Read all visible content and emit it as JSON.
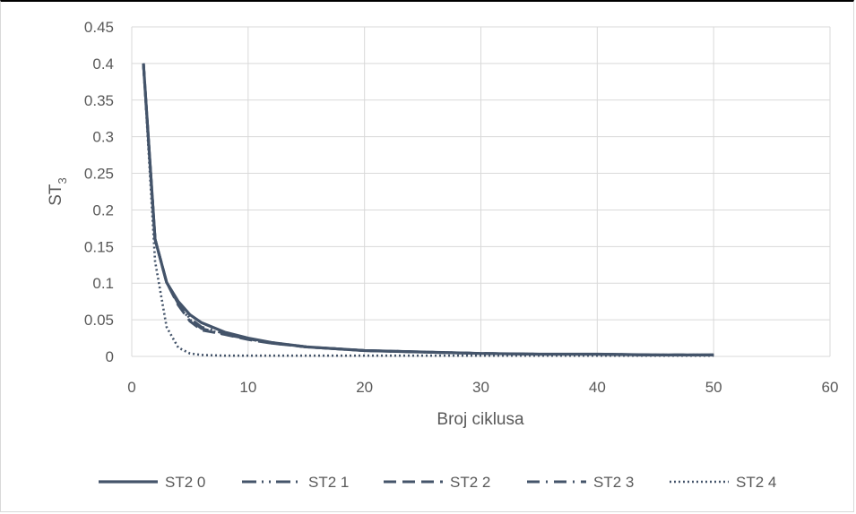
{
  "chart_data": {
    "type": "line",
    "title": "",
    "xlabel": "Broj ciklusa",
    "ylabel": "ST",
    "ylabel_sub": "3",
    "xlim": [
      0,
      60
    ],
    "ylim": [
      0,
      0.45
    ],
    "xticks": [
      0,
      10,
      20,
      30,
      40,
      50,
      60
    ],
    "yticks": [
      0,
      0.05,
      0.1,
      0.15,
      0.2,
      0.25,
      0.3,
      0.35,
      0.4,
      0.45
    ],
    "ytick_labels": [
      "0",
      "0.05",
      "0.1",
      "0.15",
      "0.2",
      "0.25",
      "0.3",
      "0.35",
      "0.4",
      "0.45"
    ],
    "grid": true,
    "legend_position": "bottom",
    "line_color": "#44546a",
    "grid_color": "#d9d9d9",
    "series": [
      {
        "name": "ST2 0",
        "dash": "solid",
        "x": [
          1,
          2,
          3,
          4,
          5,
          6,
          8,
          10,
          12,
          15,
          20,
          25,
          30,
          35,
          40,
          45,
          50
        ],
        "y": [
          0.4,
          0.16,
          0.101,
          0.075,
          0.057,
          0.046,
          0.033,
          0.025,
          0.019,
          0.013,
          0.008,
          0.006,
          0.004,
          0.003,
          0.003,
          0.002,
          0.002
        ]
      },
      {
        "name": "ST2 1",
        "dash": "dash-dot-dot",
        "x": [
          1,
          2,
          3,
          4,
          5,
          6,
          8,
          10,
          12,
          15,
          20,
          25,
          30,
          35,
          40,
          45,
          50
        ],
        "y": [
          0.4,
          0.16,
          0.101,
          0.072,
          0.05,
          0.038,
          0.03,
          0.024,
          0.019,
          0.013,
          0.008,
          0.006,
          0.004,
          0.003,
          0.003,
          0.002,
          0.002
        ]
      },
      {
        "name": "ST2 2",
        "dash": "long-dash",
        "x": [
          1,
          2,
          3,
          4,
          5,
          6,
          8,
          10,
          12,
          15,
          20,
          25,
          30,
          35,
          40,
          45,
          50
        ],
        "y": [
          0.4,
          0.16,
          0.101,
          0.07,
          0.048,
          0.036,
          0.03,
          0.023,
          0.018,
          0.013,
          0.008,
          0.006,
          0.004,
          0.003,
          0.003,
          0.002,
          0.002
        ]
      },
      {
        "name": "ST2 3",
        "dash": "dash-dot",
        "x": [
          1,
          2,
          3,
          4,
          5,
          6,
          8,
          10,
          12,
          15,
          20,
          25,
          30,
          35,
          40,
          45,
          50
        ],
        "y": [
          0.4,
          0.16,
          0.101,
          0.073,
          0.052,
          0.04,
          0.031,
          0.024,
          0.018,
          0.013,
          0.008,
          0.006,
          0.004,
          0.003,
          0.003,
          0.002,
          0.002
        ]
      },
      {
        "name": "ST2 4",
        "dash": "dotted",
        "x": [
          1,
          2,
          3,
          4,
          5,
          6,
          8,
          10,
          15,
          20,
          30,
          40,
          50
        ],
        "y": [
          0.4,
          0.13,
          0.04,
          0.012,
          0.004,
          0.002,
          0.001,
          0.001,
          0.001,
          0.001,
          0.001,
          0.001,
          0.001
        ]
      }
    ]
  }
}
